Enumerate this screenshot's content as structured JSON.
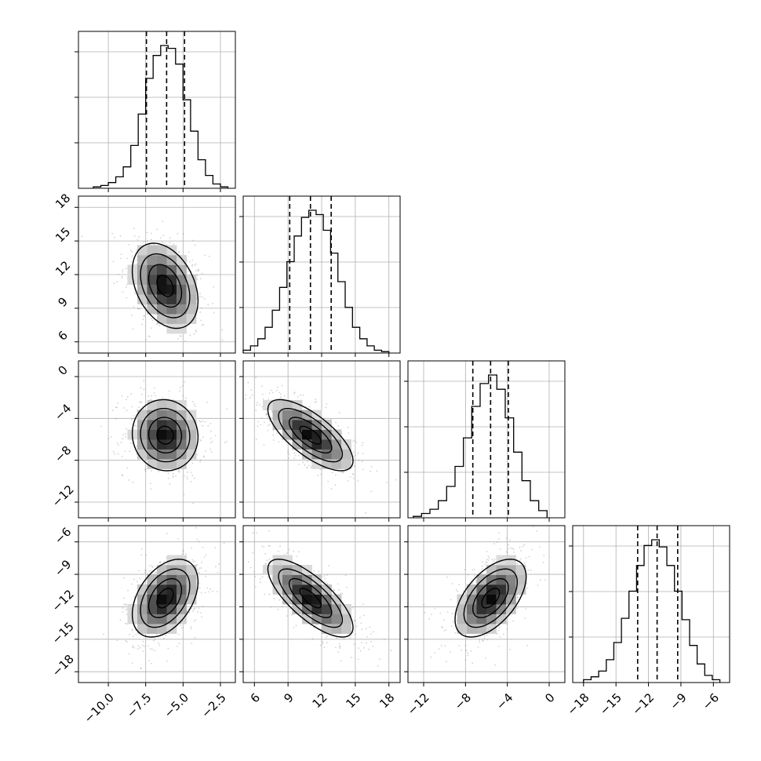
{
  "chart_data": {
    "type": "corner",
    "variables": [
      {
        "index": 0,
        "range": [
          -12.0,
          -1.5
        ],
        "ticks": [
          -10.0,
          -7.5,
          -5.0,
          -2.5
        ],
        "tick_labels": [
          "−10.0",
          "−7.5",
          "−5.0",
          "−2.5"
        ],
        "mean": -6.2,
        "sd": 1.1,
        "quantiles": [
          -7.45,
          -6.1,
          -4.9
        ],
        "hist_bin_edges": [
          -11.0,
          -10.5,
          -10.0,
          -9.5,
          -9.0,
          -8.5,
          -8.0,
          -7.5,
          -7.0,
          -6.5,
          -6.0,
          -5.5,
          -5.0,
          -4.5,
          -4.0,
          -3.5,
          -3.0,
          -2.5,
          -2.0
        ],
        "hist_rel_heights": [
          0.01,
          0.02,
          0.04,
          0.08,
          0.15,
          0.3,
          0.52,
          0.77,
          0.93,
          1.0,
          0.98,
          0.87,
          0.62,
          0.4,
          0.2,
          0.09,
          0.03,
          0.01
        ]
      },
      {
        "index": 1,
        "range": [
          5.0,
          19.0
        ],
        "ticks": [
          6,
          9,
          12,
          15,
          18
        ],
        "tick_labels": [
          "6",
          "9",
          "12",
          "15",
          "18"
        ],
        "mean": 11.0,
        "sd": 1.9,
        "quantiles": [
          9.15,
          11.0,
          12.85
        ],
        "hist_bin_edges": [
          5.0,
          5.65,
          6.3,
          6.95,
          7.6,
          8.25,
          8.9,
          9.55,
          10.2,
          10.85,
          11.5,
          12.15,
          12.8,
          13.45,
          14.1,
          14.75,
          15.4,
          16.05,
          16.7,
          17.35,
          18.0
        ],
        "hist_rel_heights": [
          0.02,
          0.05,
          0.1,
          0.18,
          0.3,
          0.46,
          0.64,
          0.82,
          0.95,
          1.0,
          0.97,
          0.86,
          0.7,
          0.5,
          0.32,
          0.18,
          0.1,
          0.05,
          0.02,
          0.01
        ]
      },
      {
        "index": 2,
        "range": [
          -13.5,
          1.5
        ],
        "ticks": [
          -12,
          -8,
          -4,
          0
        ],
        "tick_labels": [
          "−12",
          "−8",
          "−4",
          "0"
        ],
        "mean": -5.6,
        "sd": 1.7,
        "quantiles": [
          -7.3,
          -5.6,
          -3.9
        ],
        "hist_bin_edges": [
          -13.0,
          -12.2,
          -11.4,
          -10.6,
          -9.8,
          -9.0,
          -8.2,
          -7.4,
          -6.6,
          -5.8,
          -5.0,
          -4.2,
          -3.4,
          -2.6,
          -1.8,
          -1.0,
          -0.2
        ],
        "hist_rel_heights": [
          0.01,
          0.03,
          0.06,
          0.12,
          0.22,
          0.36,
          0.56,
          0.78,
          0.94,
          1.0,
          0.9,
          0.7,
          0.46,
          0.26,
          0.12,
          0.05
        ]
      },
      {
        "index": 3,
        "range": [
          -19.0,
          -4.5
        ],
        "ticks": [
          -18,
          -15,
          -12,
          -9,
          -6
        ],
        "tick_labels": [
          "−18",
          "−15",
          "−12",
          "−9",
          "−6"
        ],
        "mean": -11.2,
        "sd": 1.8,
        "quantiles": [
          -13.0,
          -11.2,
          -9.3
        ],
        "hist_bin_edges": [
          -18.0,
          -17.3,
          -16.6,
          -15.9,
          -15.2,
          -14.5,
          -13.8,
          -13.1,
          -12.4,
          -11.7,
          -11.0,
          -10.3,
          -9.6,
          -8.9,
          -8.2,
          -7.5,
          -6.8,
          -6.1,
          -5.4
        ],
        "hist_rel_heights": [
          0.02,
          0.04,
          0.08,
          0.16,
          0.28,
          0.45,
          0.64,
          0.82,
          0.96,
          1.0,
          0.95,
          0.82,
          0.64,
          0.44,
          0.26,
          0.13,
          0.05,
          0.02
        ]
      }
    ],
    "correlations": {
      "1-0": -0.35,
      "2-0": -0.05,
      "2-1": -0.72,
      "3-0": 0.42,
      "3-1": -0.75,
      "3-2": 0.55
    },
    "quantile_style": "dashed",
    "grid": true,
    "colors": {
      "line": "#000000",
      "grid": "#b0b0b0",
      "density_dark": "#000000",
      "density_light": "#ffffff",
      "scatter": "#7f7f7f"
    }
  }
}
